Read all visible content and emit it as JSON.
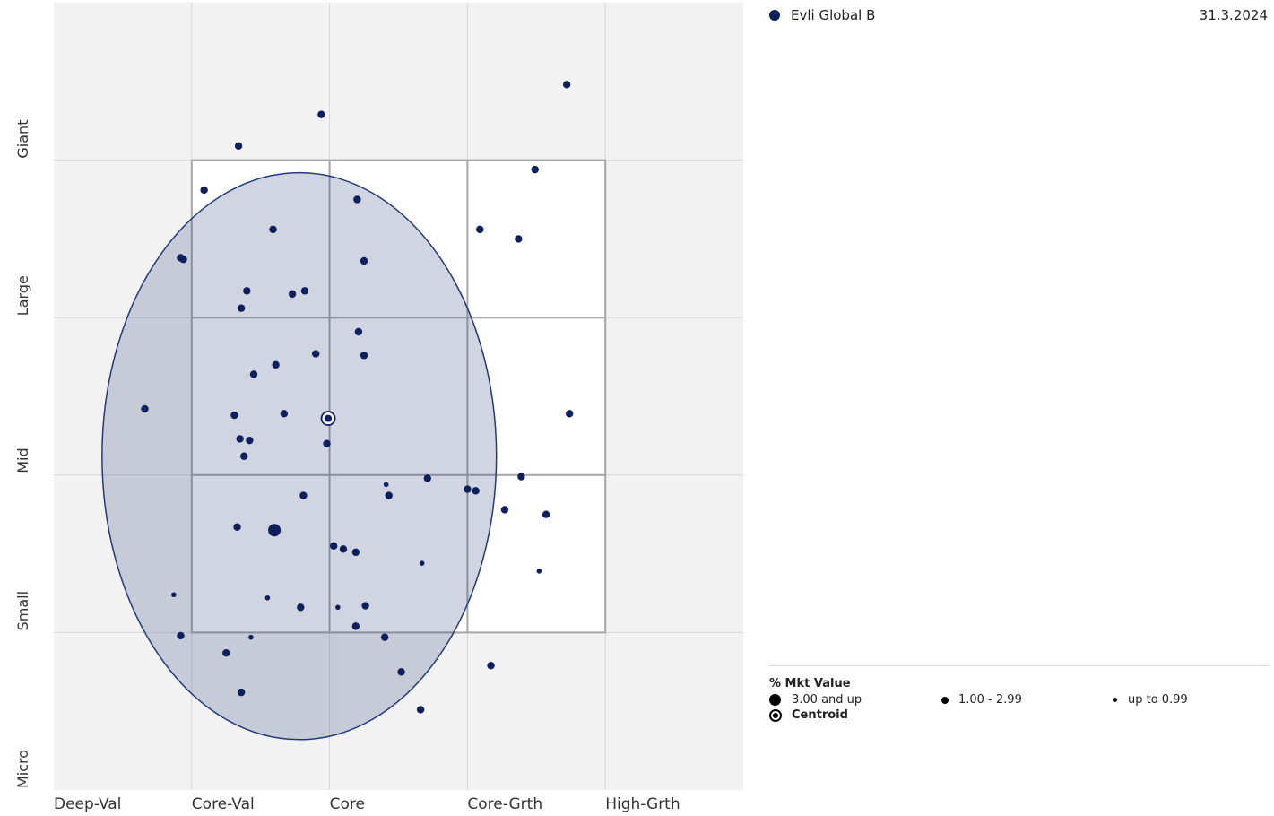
{
  "series_label": "Evli Global B",
  "date": "31.3.2024",
  "colors": {
    "point": "#0d1f5c",
    "ellipse_fill": "#2c3e78",
    "ellipse_stroke": "#233a7a",
    "background": "#f2f2f2",
    "box_fill": "#ffffff",
    "grid": "#d6d6d6",
    "box_grid": "#a6a6a6"
  },
  "legend": {
    "title": "% Mkt Value",
    "sizes": [
      {
        "label": "3.00 and up"
      },
      {
        "label": "1.00 - 2.99"
      },
      {
        "label": "up to 0.99"
      }
    ],
    "centroid_label": "Centroid"
  },
  "chart_data": {
    "type": "scatter",
    "x_categories": [
      "Deep-Val",
      "Core-Val",
      "Core",
      "Core-Grth",
      "High-Grth"
    ],
    "y_categories": [
      "Micro",
      "Small",
      "Mid",
      "Large",
      "Giant"
    ],
    "xlim": [
      0,
      500
    ],
    "ylim": [
      0,
      500
    ],
    "style_box": {
      "x": [
        100,
        400
      ],
      "y": [
        100,
        400
      ]
    },
    "centroid": {
      "x": 199,
      "y": 236
    },
    "ellipse": {
      "cx": 178,
      "cy": 212,
      "rx": 143,
      "ry": 180
    },
    "points": [
      {
        "x": 372,
        "y": 448,
        "size": "medium"
      },
      {
        "x": 194,
        "y": 429,
        "size": "medium"
      },
      {
        "x": 134,
        "y": 409,
        "size": "medium"
      },
      {
        "x": 349,
        "y": 394,
        "size": "medium"
      },
      {
        "x": 109,
        "y": 381,
        "size": "medium"
      },
      {
        "x": 220,
        "y": 375,
        "size": "medium"
      },
      {
        "x": 159,
        "y": 356,
        "size": "medium"
      },
      {
        "x": 309,
        "y": 356,
        "size": "medium"
      },
      {
        "x": 337,
        "y": 350,
        "size": "medium"
      },
      {
        "x": 92,
        "y": 338,
        "size": "medium"
      },
      {
        "x": 94,
        "y": 337,
        "size": "medium"
      },
      {
        "x": 225,
        "y": 336,
        "size": "medium"
      },
      {
        "x": 140,
        "y": 317,
        "size": "medium"
      },
      {
        "x": 182,
        "y": 317,
        "size": "medium"
      },
      {
        "x": 173,
        "y": 315,
        "size": "medium"
      },
      {
        "x": 136,
        "y": 306,
        "size": "medium"
      },
      {
        "x": 221,
        "y": 291,
        "size": "medium"
      },
      {
        "x": 190,
        "y": 277,
        "size": "medium"
      },
      {
        "x": 225,
        "y": 276,
        "size": "medium"
      },
      {
        "x": 161,
        "y": 270,
        "size": "medium"
      },
      {
        "x": 145,
        "y": 264,
        "size": "medium"
      },
      {
        "x": 66,
        "y": 242,
        "size": "medium"
      },
      {
        "x": 374,
        "y": 239,
        "size": "medium"
      },
      {
        "x": 167,
        "y": 239,
        "size": "medium"
      },
      {
        "x": 131,
        "y": 238,
        "size": "medium"
      },
      {
        "x": 198,
        "y": 220,
        "size": "medium"
      },
      {
        "x": 135,
        "y": 223,
        "size": "medium"
      },
      {
        "x": 142,
        "y": 222,
        "size": "medium"
      },
      {
        "x": 138,
        "y": 212,
        "size": "medium"
      },
      {
        "x": 339,
        "y": 199,
        "size": "medium"
      },
      {
        "x": 271,
        "y": 198,
        "size": "medium"
      },
      {
        "x": 241,
        "y": 194,
        "size": "small"
      },
      {
        "x": 300,
        "y": 191,
        "size": "medium"
      },
      {
        "x": 306,
        "y": 190,
        "size": "medium"
      },
      {
        "x": 243,
        "y": 187,
        "size": "medium"
      },
      {
        "x": 181,
        "y": 187,
        "size": "medium"
      },
      {
        "x": 327,
        "y": 178,
        "size": "medium"
      },
      {
        "x": 357,
        "y": 175,
        "size": "medium"
      },
      {
        "x": 133,
        "y": 167,
        "size": "medium"
      },
      {
        "x": 160,
        "y": 165,
        "size": "large"
      },
      {
        "x": 203,
        "y": 155,
        "size": "medium"
      },
      {
        "x": 210,
        "y": 153,
        "size": "medium"
      },
      {
        "x": 219,
        "y": 151,
        "size": "medium"
      },
      {
        "x": 267,
        "y": 144,
        "size": "small"
      },
      {
        "x": 352,
        "y": 139,
        "size": "small"
      },
      {
        "x": 87,
        "y": 124,
        "size": "small"
      },
      {
        "x": 155,
        "y": 122,
        "size": "small"
      },
      {
        "x": 179,
        "y": 116,
        "size": "medium"
      },
      {
        "x": 206,
        "y": 116,
        "size": "small"
      },
      {
        "x": 226,
        "y": 117,
        "size": "medium"
      },
      {
        "x": 219,
        "y": 104,
        "size": "medium"
      },
      {
        "x": 92,
        "y": 98,
        "size": "medium"
      },
      {
        "x": 143,
        "y": 97,
        "size": "small"
      },
      {
        "x": 240,
        "y": 97,
        "size": "medium"
      },
      {
        "x": 125,
        "y": 87,
        "size": "medium"
      },
      {
        "x": 252,
        "y": 75,
        "size": "medium"
      },
      {
        "x": 317,
        "y": 79,
        "size": "medium"
      },
      {
        "x": 136,
        "y": 62,
        "size": "medium"
      },
      {
        "x": 266,
        "y": 51,
        "size": "medium"
      }
    ]
  }
}
